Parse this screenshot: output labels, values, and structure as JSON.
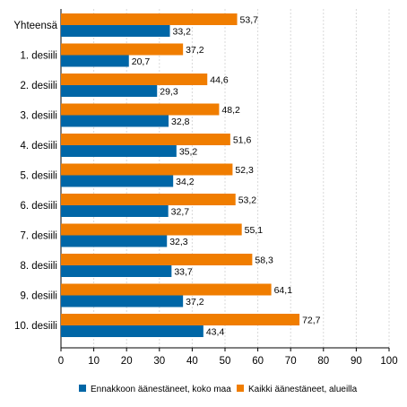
{
  "chart_data": {
    "type": "bar",
    "orientation": "horizontal",
    "title": "",
    "xlabel": "",
    "ylabel": "",
    "categories": [
      "Yhteensä",
      "1. desiili",
      "2. desiili",
      "3. desiili",
      "4. desiili",
      "5. desiili",
      "6. desiili",
      "7. desiili",
      "8. desiili",
      "9. desiili",
      "10. desiili"
    ],
    "series": [
      {
        "name": "Kaikki äänestäneet, alueilla",
        "color": "#f07d00",
        "values": [
          53.7,
          37.2,
          44.6,
          48.2,
          51.6,
          52.3,
          53.2,
          55.1,
          58.3,
          64.1,
          72.7
        ]
      },
      {
        "name": "Ennakkoon äänestäneet, koko maa",
        "color": "#0066a6",
        "values": [
          33.2,
          20.7,
          29.3,
          32.8,
          35.2,
          34.2,
          32.7,
          32.3,
          33.7,
          37.2,
          43.4
        ]
      }
    ],
    "xlim": [
      0,
      100
    ],
    "xticks": [
      0,
      10,
      20,
      30,
      40,
      50,
      60,
      70,
      80,
      90,
      100
    ],
    "grid": true,
    "legend": {
      "position": "bottom",
      "order": [
        "Ennakkoon äänestäneet, koko maa",
        "Kaikki äänestäneet, alueilla"
      ]
    }
  }
}
